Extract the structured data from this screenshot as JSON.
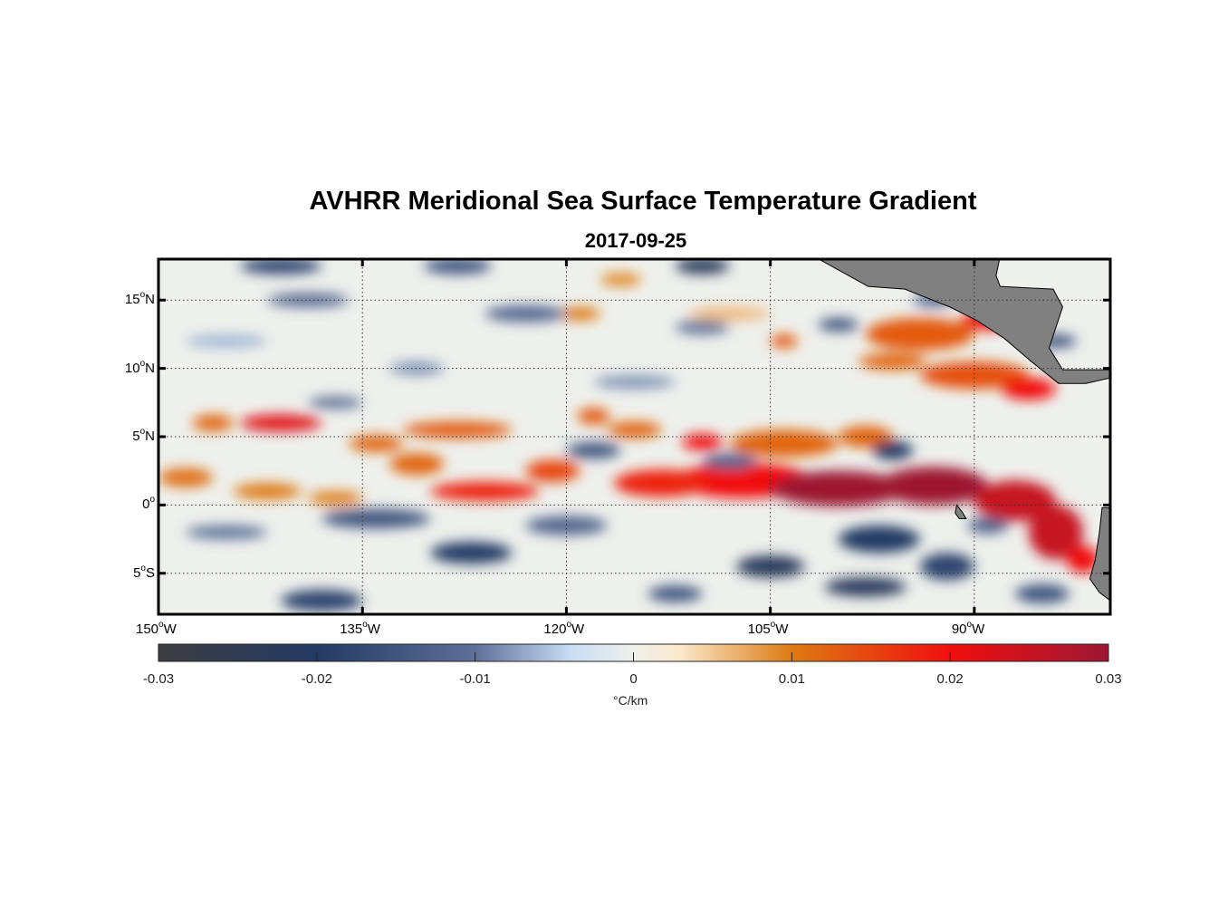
{
  "title": "AVHRR Meridional Sea Surface Temperature Gradient",
  "subtitle": "2017-09-25",
  "chart_data": {
    "type": "heatmap",
    "title": "AVHRR Meridional Sea Surface Temperature Gradient",
    "subtitle": "2017-09-25",
    "xlim": [
      -150,
      -80
    ],
    "ylim": [
      -8,
      18
    ],
    "x_ticks": [
      {
        "value": -150,
        "num": "150",
        "hem": "W"
      },
      {
        "value": -135,
        "num": "135",
        "hem": "W"
      },
      {
        "value": -120,
        "num": "120",
        "hem": "W"
      },
      {
        "value": -105,
        "num": "105",
        "hem": "W"
      },
      {
        "value": -90,
        "num": "90",
        "hem": "W"
      }
    ],
    "y_ticks": [
      {
        "value": 15,
        "num": "15",
        "hem": "N"
      },
      {
        "value": 10,
        "num": "10",
        "hem": "N"
      },
      {
        "value": 5,
        "num": "5",
        "hem": "N"
      },
      {
        "value": 0,
        "num": "0",
        "hem": ""
      },
      {
        "value": -5,
        "num": "5",
        "hem": "S"
      }
    ],
    "grid": true,
    "colorbar": {
      "label": "°C/km",
      "range": [
        -0.03,
        0.03
      ],
      "ticks": [
        "-0.03",
        "-0.02",
        "-0.01",
        "0",
        "0.01",
        "0.02",
        "0.03"
      ],
      "stops": [
        [
          -0.03,
          "#3c3c40"
        ],
        [
          -0.02,
          "#243a63"
        ],
        [
          -0.01,
          "#5d7098"
        ],
        [
          -0.004,
          "#c8dcf3"
        ],
        [
          0,
          "#eef0ec"
        ],
        [
          0.003,
          "#fbe7c9"
        ],
        [
          0.01,
          "#dd7a12"
        ],
        [
          0.02,
          "#f10f0f"
        ],
        [
          0.03,
          "#9c1733"
        ]
      ]
    },
    "features": [
      [
        -107,
        1.8,
        5,
        1.3,
        0.02
      ],
      [
        -100,
        1.2,
        5,
        1.3,
        0.03
      ],
      [
        -93,
        1.4,
        4,
        1.4,
        0.03
      ],
      [
        -87,
        0.3,
        3,
        1.5,
        0.025
      ],
      [
        -84,
        -2,
        2,
        2,
        0.025
      ],
      [
        -82,
        -4,
        1.2,
        1,
        0.02
      ],
      [
        -113,
        1.6,
        3.5,
        1,
        0.018
      ],
      [
        -104,
        4.5,
        4,
        1,
        0.012
      ],
      [
        -98,
        5,
        2,
        0.8,
        0.012
      ],
      [
        -126,
        1,
        4,
        0.7,
        0.018
      ],
      [
        -121,
        2.5,
        2,
        0.8,
        0.015
      ],
      [
        -131,
        3,
        2,
        0.8,
        0.012
      ],
      [
        -128,
        5.5,
        4,
        0.6,
        0.013
      ],
      [
        -134,
        4.5,
        2,
        0.6,
        0.012
      ],
      [
        -141,
        6,
        3,
        0.6,
        0.022
      ],
      [
        -146,
        6,
        1.5,
        0.6,
        0.012
      ],
      [
        -148,
        2,
        2,
        0.7,
        0.011
      ],
      [
        -142,
        1,
        2.5,
        0.6,
        0.01
      ],
      [
        -137,
        0.5,
        2,
        0.5,
        0.01
      ],
      [
        -118,
        6.5,
        1.2,
        0.6,
        0.013
      ],
      [
        -115,
        5.5,
        2,
        0.6,
        0.012
      ],
      [
        -110,
        4.6,
        1.5,
        0.6,
        0.02
      ],
      [
        -94,
        12.5,
        4,
        1.2,
        0.013
      ],
      [
        -89,
        13.5,
        2,
        0.7,
        0.02
      ],
      [
        -90,
        9.5,
        4,
        1,
        0.014
      ],
      [
        -86,
        8.5,
        2,
        0.8,
        0.02
      ],
      [
        -96,
        10.5,
        2.5,
        0.6,
        0.012
      ],
      [
        -104,
        12,
        1,
        0.5,
        0.013
      ],
      [
        -119,
        14,
        1.5,
        0.5,
        0.01
      ],
      [
        -116,
        16.5,
        1.5,
        0.5,
        0.009
      ],
      [
        -108,
        14,
        3,
        0.5,
        0.006
      ],
      [
        -127,
        -3.5,
        3,
        0.8,
        -0.02
      ],
      [
        -134,
        -1,
        4,
        0.7,
        -0.015
      ],
      [
        -120,
        -1.5,
        3,
        0.7,
        -0.012
      ],
      [
        -105,
        -4.5,
        2.5,
        0.8,
        -0.022
      ],
      [
        -97,
        -2.5,
        3,
        1,
        -0.02
      ],
      [
        -98,
        -6,
        3,
        0.7,
        -0.022
      ],
      [
        -92,
        -4.5,
        2,
        1,
        -0.018
      ],
      [
        -89,
        -1.5,
        1.5,
        0.6,
        -0.012
      ],
      [
        -138,
        -7,
        3,
        0.8,
        -0.018
      ],
      [
        -112,
        -6.5,
        2,
        0.6,
        -0.015
      ],
      [
        -85,
        -6.5,
        2,
        0.7,
        -0.015
      ],
      [
        -145,
        -2,
        3,
        0.5,
        -0.01
      ],
      [
        -141,
        17.5,
        3,
        0.6,
        -0.018
      ],
      [
        -128,
        17.5,
        2.5,
        0.6,
        -0.015
      ],
      [
        -110,
        17.5,
        2,
        0.6,
        -0.022
      ],
      [
        -139,
        15,
        3,
        0.5,
        -0.012
      ],
      [
        -123,
        14,
        3,
        0.6,
        -0.012
      ],
      [
        -110,
        13,
        2,
        0.5,
        -0.01
      ],
      [
        -100,
        13.2,
        1.5,
        0.5,
        -0.015
      ],
      [
        -93,
        15,
        1.5,
        0.5,
        -0.012
      ],
      [
        -118,
        4,
        2,
        0.6,
        -0.015
      ],
      [
        -108,
        3.2,
        2,
        0.6,
        -0.012
      ],
      [
        -96,
        4,
        1.5,
        0.7,
        -0.02
      ],
      [
        -84,
        12,
        1.5,
        0.5,
        -0.015
      ],
      [
        -131,
        10,
        2,
        0.5,
        -0.008
      ],
      [
        -115,
        9,
        3,
        0.5,
        -0.008
      ],
      [
        -137,
        7.5,
        2,
        0.4,
        -0.012
      ],
      [
        -145,
        12,
        3,
        0.5,
        -0.006
      ]
    ],
    "land": [
      [
        [
          -101.8,
          18.2
        ],
        [
          -97.8,
          16
        ],
        [
          -95.1,
          15.8
        ],
        [
          -91.8,
          14.5
        ],
        [
          -89.8,
          13.5
        ],
        [
          -87.8,
          12.2
        ],
        [
          -85.8,
          10.5
        ],
        [
          -83.8,
          8.9
        ],
        [
          -81.8,
          8.9
        ],
        [
          -80,
          9.3
        ],
        [
          -80,
          9.9
        ],
        [
          -83.5,
          9.9
        ],
        [
          -84.5,
          11.5
        ],
        [
          -83.5,
          14.5
        ],
        [
          -84.2,
          15.8
        ],
        [
          -88.1,
          16
        ],
        [
          -88.4,
          16.8
        ],
        [
          -88.1,
          18.2
        ]
      ],
      [
        [
          -80.6,
          -0.2
        ],
        [
          -80.8,
          -2
        ],
        [
          -81.1,
          -4
        ],
        [
          -81.5,
          -5.4
        ],
        [
          -80.8,
          -6.4
        ],
        [
          -80,
          -7
        ],
        [
          -80,
          -0.2
        ]
      ],
      [
        [
          -91.3,
          0
        ],
        [
          -90.9,
          -0.5
        ],
        [
          -90.6,
          -1
        ],
        [
          -91.1,
          -1
        ],
        [
          -91.4,
          -0.6
        ]
      ]
    ]
  }
}
